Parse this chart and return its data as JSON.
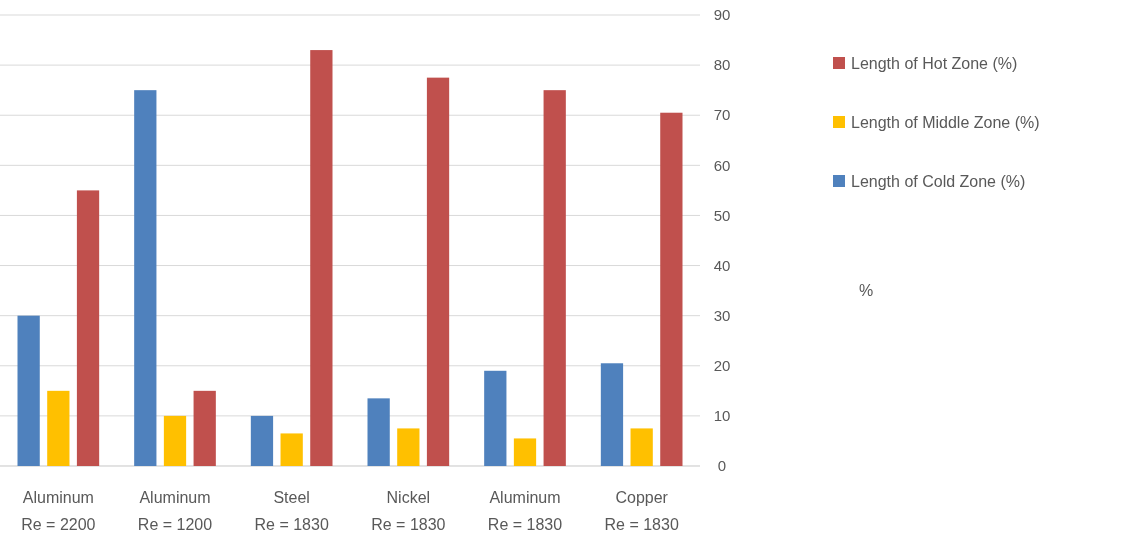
{
  "chart_data": {
    "type": "bar",
    "annotations": [
      "%"
    ],
    "categories": [
      "Aluminum\nRe = 2200",
      "Aluminum\nRe = 1200",
      "Steel\nRe = 1830",
      "Nickel\nRe = 1830",
      "Aluminum\nRe = 1830",
      "Copper\nRe = 1830"
    ],
    "series": [
      {
        "name": "Length of Cold Zone (%)",
        "color": "#4f81bd",
        "values": [
          30,
          75,
          10,
          13.5,
          19,
          20.5
        ]
      },
      {
        "name": "Length of Middle Zone (%)",
        "color": "#ffc000",
        "values": [
          15,
          10,
          6.5,
          7.5,
          5.5,
          7.5
        ]
      },
      {
        "name": "Length of Hot Zone (%)",
        "color": "#c0504d",
        "values": [
          55,
          15,
          83,
          77.5,
          75,
          70.5
        ]
      }
    ],
    "ylim": [
      0,
      90
    ],
    "yticks": [
      0,
      10,
      20,
      30,
      40,
      50,
      60,
      70,
      80,
      90
    ],
    "grid": "y",
    "legend": "right"
  }
}
